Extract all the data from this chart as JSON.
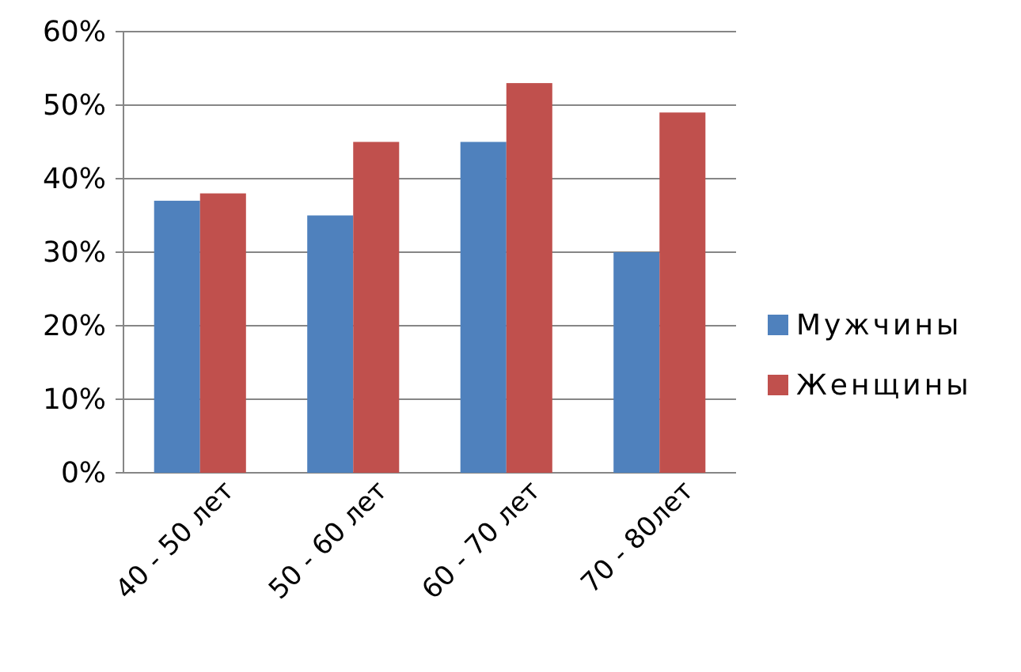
{
  "chart_data": {
    "type": "bar",
    "categories": [
      "40 - 50 лет",
      "50 - 60 лет",
      "60 - 70 лет",
      "70 - 80лет"
    ],
    "series": [
      {
        "name": "Мужчины",
        "color": "#4f81bd",
        "values": [
          37,
          35,
          45,
          30
        ]
      },
      {
        "name": "Женщины",
        "color": "#c0504d",
        "values": [
          38,
          45,
          53,
          49
        ]
      }
    ],
    "ylim": [
      0,
      60
    ],
    "yticks": [
      {
        "value": 0,
        "label": "0%"
      },
      {
        "value": 10,
        "label": "10%"
      },
      {
        "value": 20,
        "label": "20%"
      },
      {
        "value": 30,
        "label": "30%"
      },
      {
        "value": 40,
        "label": "40%"
      },
      {
        "value": 50,
        "label": "50%"
      },
      {
        "value": 60,
        "label": "60%"
      }
    ],
    "grid": "y",
    "legend": "right"
  }
}
